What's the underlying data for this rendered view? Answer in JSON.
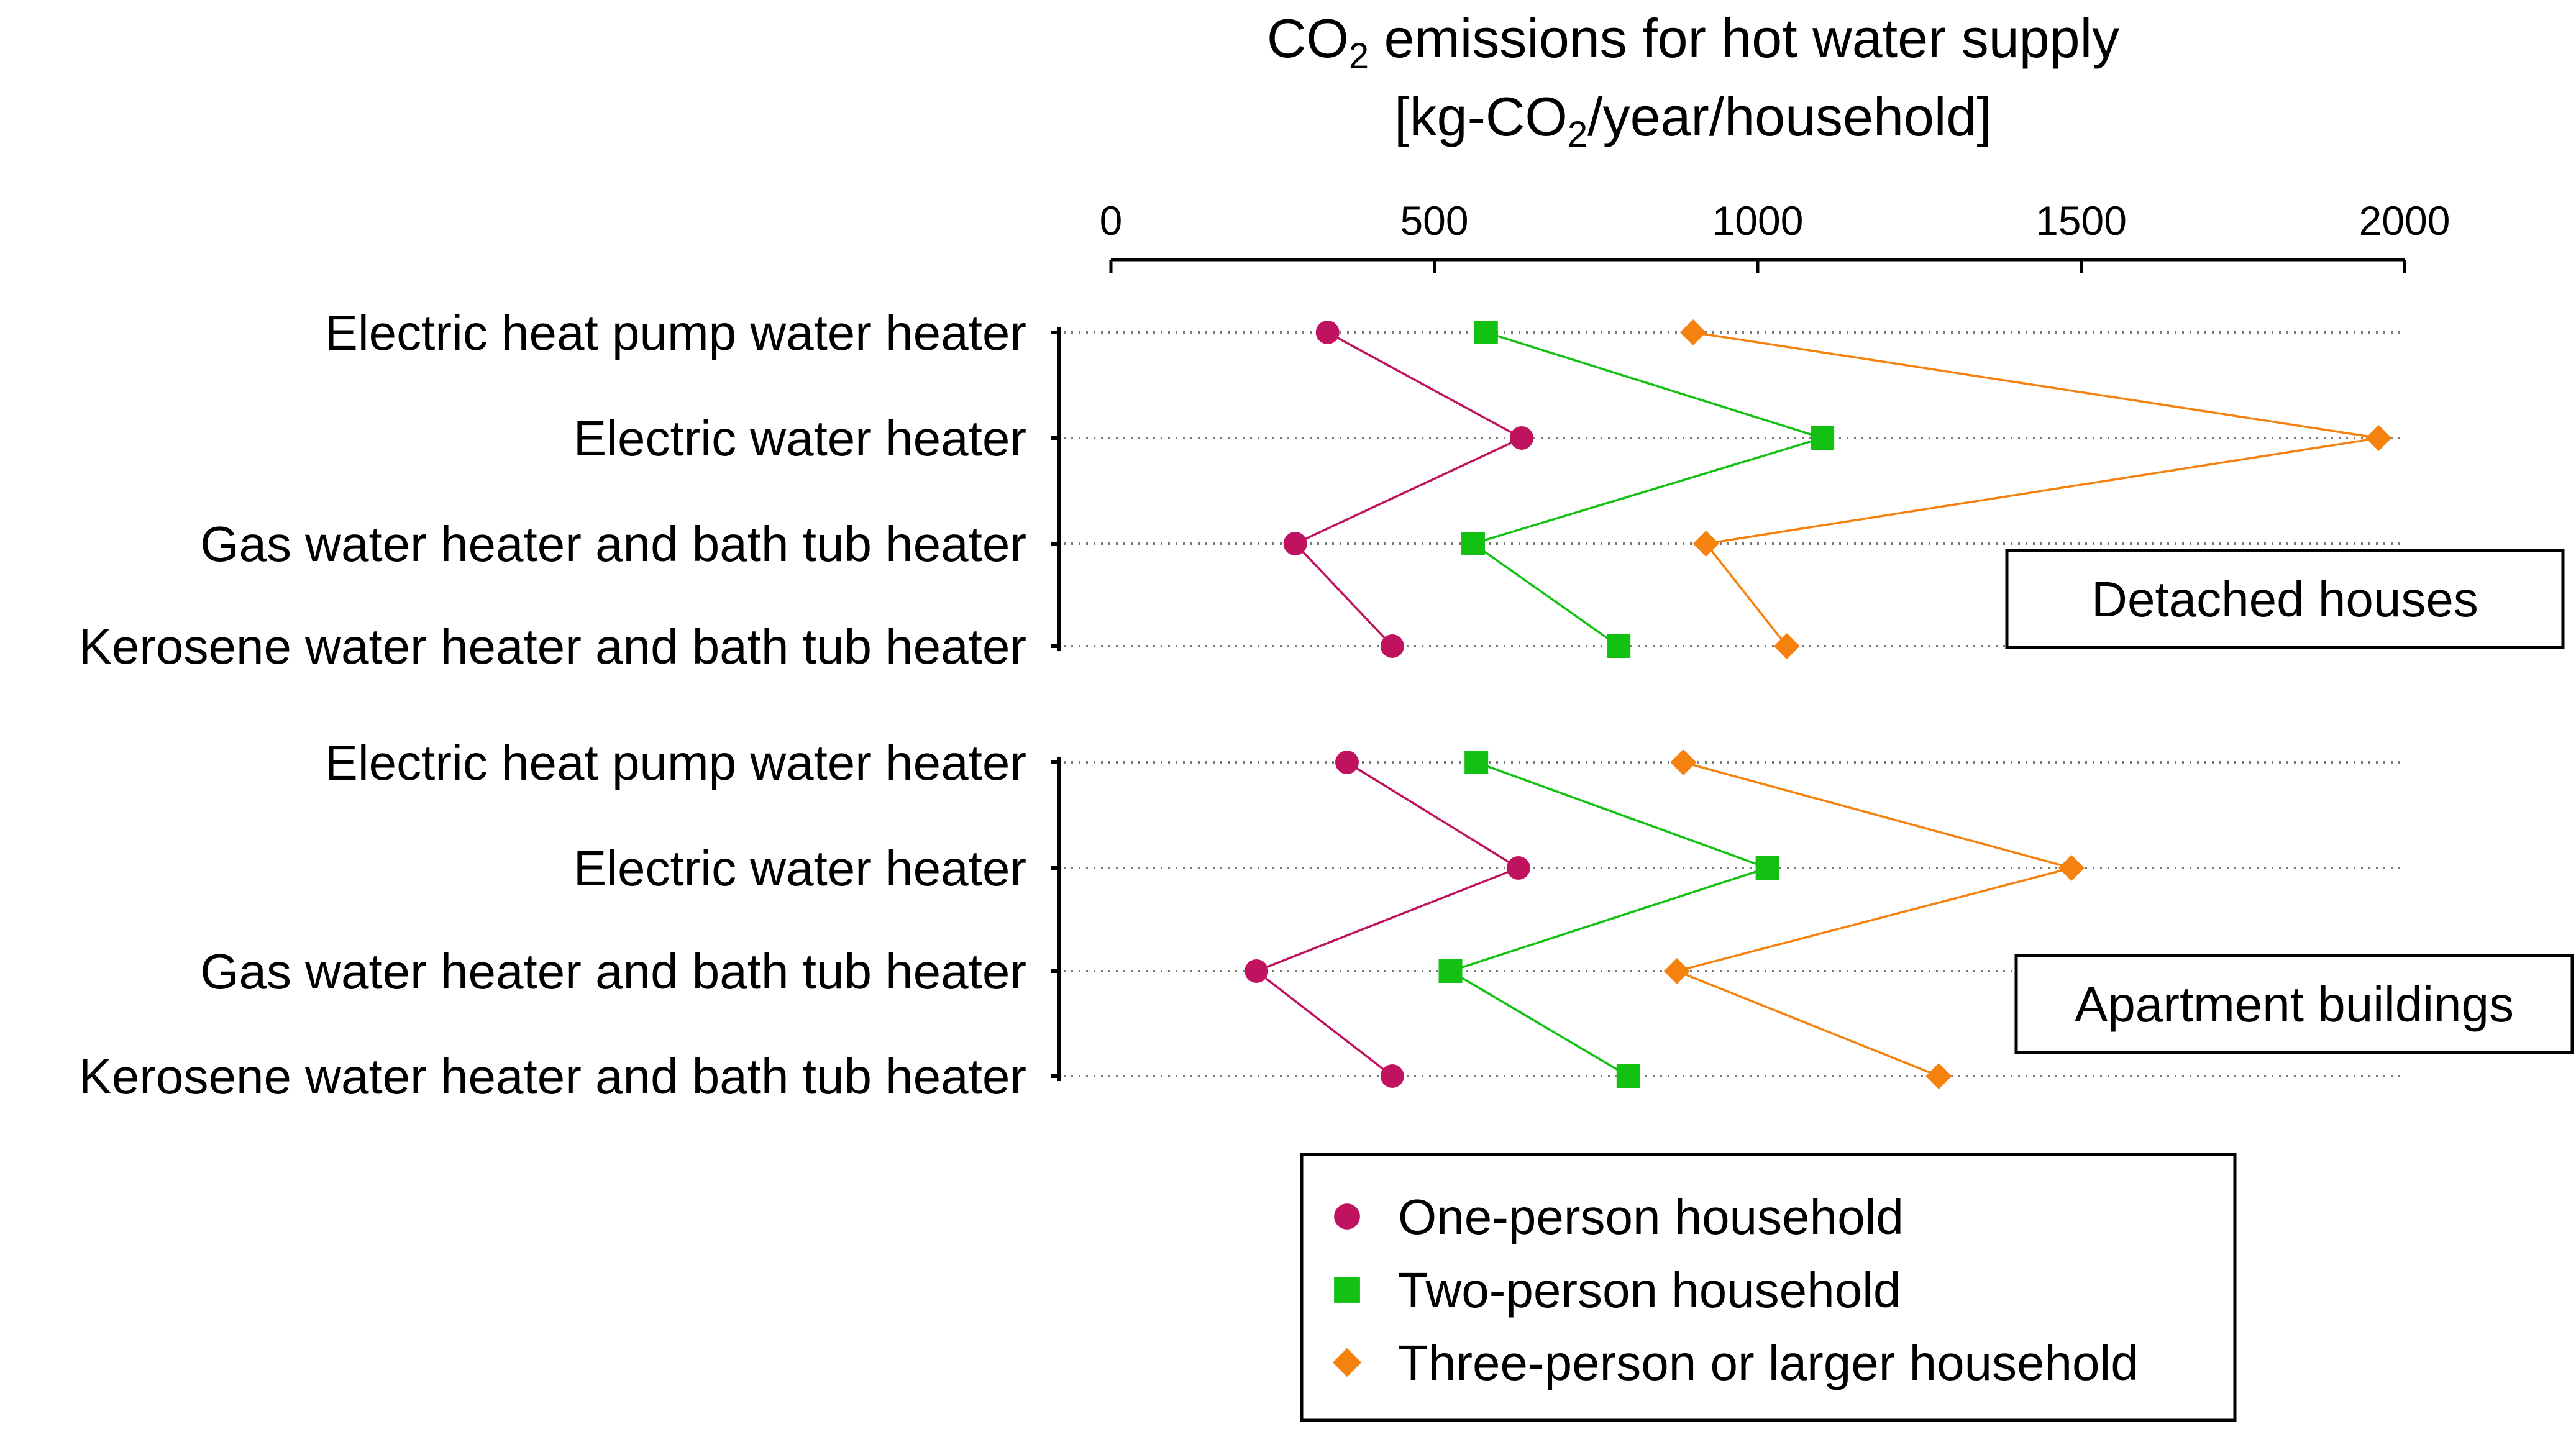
{
  "chart_data": {
    "type": "scatter",
    "title": {
      "line1": {
        "prefix": "CO",
        "sub": "2",
        "suffix": " emissions for hot water supply"
      },
      "line2": {
        "prefix": "[kg-CO",
        "sub": "2",
        "suffix": "/year/household]"
      }
    },
    "x_axis": {
      "position": "top",
      "ticks": [
        "0",
        "500",
        "1000",
        "1500",
        "2000"
      ],
      "range": [
        0,
        2000
      ],
      "grid": "dotted"
    },
    "categories": [
      "Electric heat pump water heater",
      "Electric water heater",
      "Gas water heater and bath tub heater",
      "Kerosene water heater and bath tub heater"
    ],
    "panels": [
      {
        "label": "Detached houses",
        "series": [
          {
            "name": "One-person household",
            "values": [
              335,
              635,
              285,
              435
            ]
          },
          {
            "name": "Two-person household",
            "values": [
              580,
              1100,
              560,
              785
            ]
          },
          {
            "name": "Three-person or larger household",
            "values": [
              900,
              1960,
              920,
              1045
            ]
          }
        ]
      },
      {
        "label": "Apartment buildings",
        "series": [
          {
            "name": "One-person household",
            "values": [
              365,
              630,
              225,
              435
            ]
          },
          {
            "name": "Two-person household",
            "values": [
              565,
              1015,
              525,
              800
            ]
          },
          {
            "name": "Three-person or larger household",
            "values": [
              885,
              1485,
              875,
              1280
            ]
          }
        ]
      }
    ],
    "legend": {
      "position": "bottom-center",
      "items": [
        {
          "name": "One-person household",
          "marker": "circle",
          "color": "#c0135f"
        },
        {
          "name": "Two-person household",
          "marker": "square",
          "color": "#13c113"
        },
        {
          "name": "Three-person or larger household",
          "marker": "diamond",
          "color": "#f5820f"
        }
      ]
    },
    "colors": {
      "one": "#c0135f",
      "two": "#13c113",
      "three": "#f5820f"
    }
  }
}
